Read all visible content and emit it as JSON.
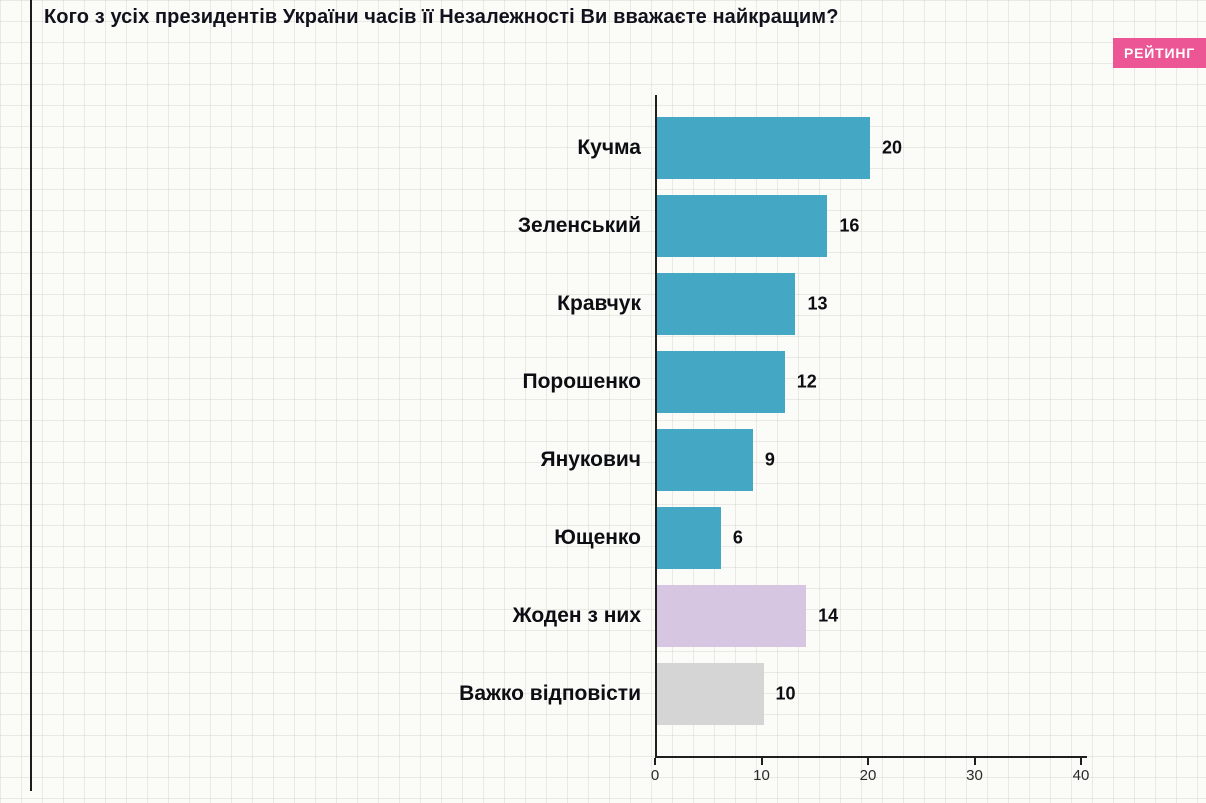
{
  "title": "Кого з усіх президентів України часів її Незалежності Ви вважаєте найкращим?",
  "logo": "РЕЙТИНГ",
  "colors": {
    "bar_teal": "#44a7c3",
    "bar_lavender": "#d7c6e2",
    "bar_gray": "#d5d5d5",
    "logo_bg": "#ec5695",
    "axis": "#1f1f1f"
  },
  "chart_data": {
    "type": "bar",
    "orientation": "horizontal",
    "title": "Кого з усіх президентів України часів її Незалежності Ви вважаєте найкращим?",
    "categories": [
      "Кучма",
      "Зеленський",
      "Кравчук",
      "Порошенко",
      "Янукович",
      "Ющенко",
      "Жоден з них",
      "Важко відповісти"
    ],
    "values": [
      20,
      16,
      13,
      12,
      9,
      6,
      14,
      10
    ],
    "bar_color_keys": [
      "bar_teal",
      "bar_teal",
      "bar_teal",
      "bar_teal",
      "bar_teal",
      "bar_teal",
      "bar_lavender",
      "bar_gray"
    ],
    "xlabel": "",
    "ylabel": "",
    "xlim": [
      0,
      40
    ],
    "x_ticks": [
      0,
      10,
      20,
      30,
      40
    ],
    "grid": true,
    "legend": false,
    "value_labels": true
  }
}
